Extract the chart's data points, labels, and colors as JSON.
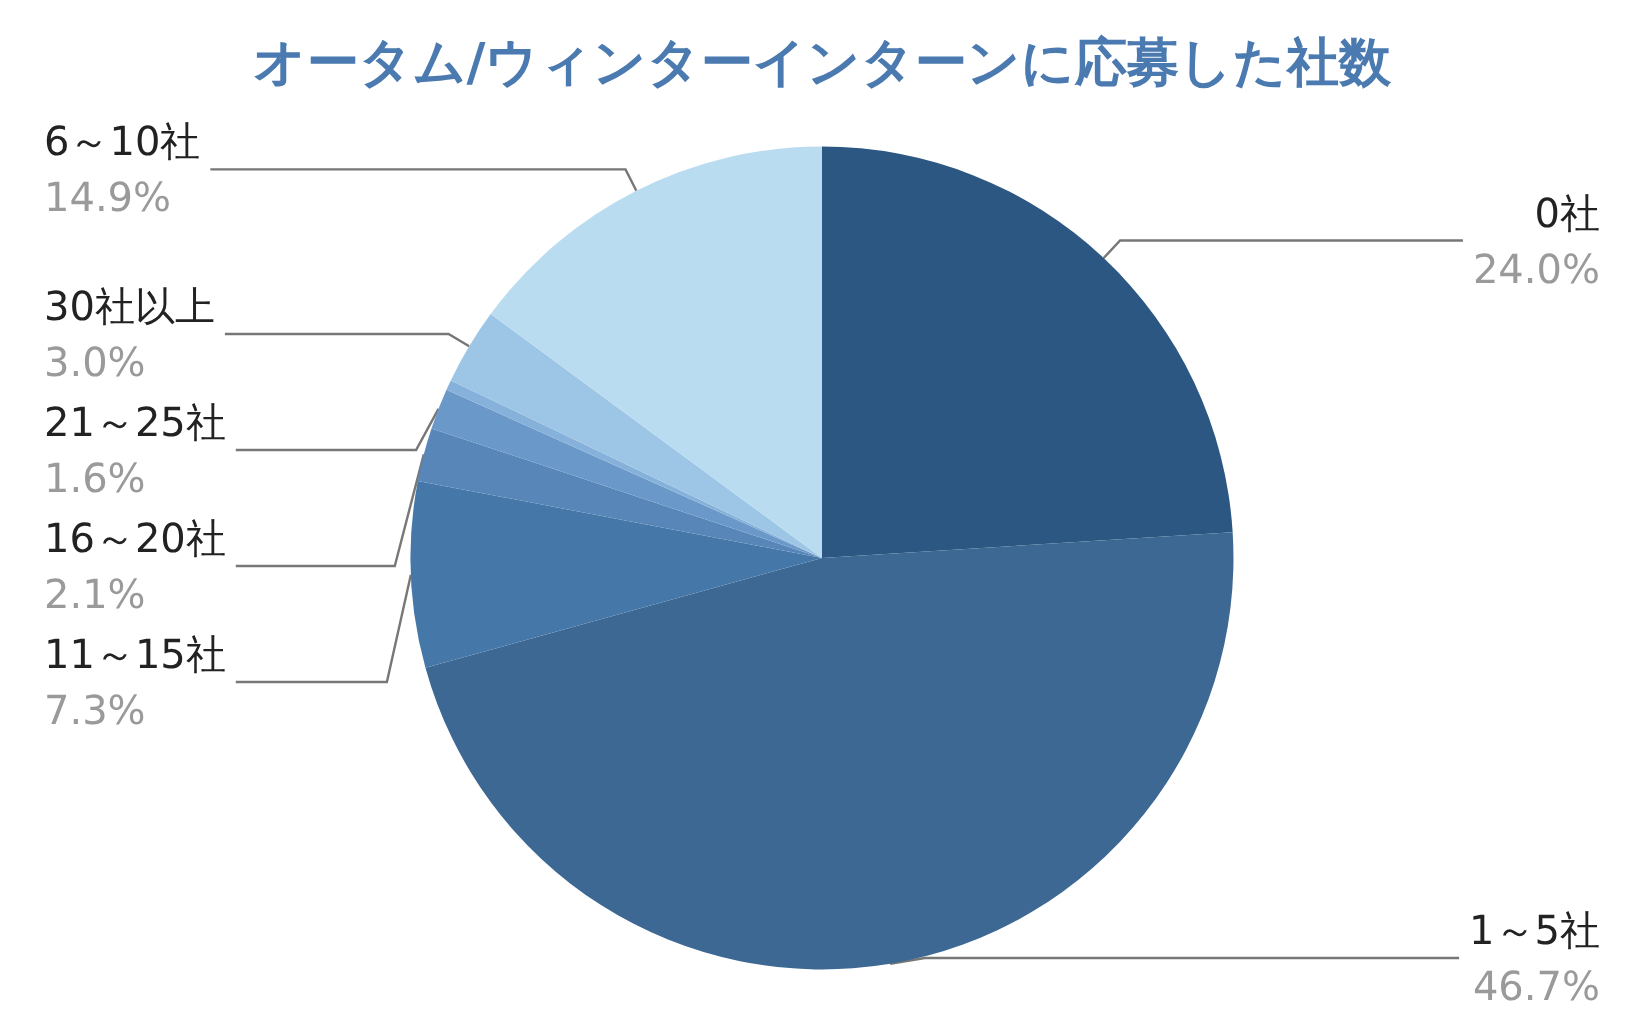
{
  "chart_data": {
    "type": "pie",
    "title": "オータム/ウィンターインターンに応募した社数",
    "categories": [
      "0社",
      "1～5社",
      "11～15社",
      "16～20社",
      "21～25社",
      null,
      "30社以上",
      "6～10社"
    ],
    "values": [
      24.0,
      46.7,
      7.3,
      2.1,
      1.6,
      0.4,
      3.0,
      14.9
    ],
    "value_labels": [
      "24.0%",
      "46.7%",
      "7.3%",
      "2.1%",
      "1.6%",
      null,
      "3.0%",
      "14.9%"
    ],
    "colors": [
      "#2b5782",
      "#3c6893",
      "#4577a8",
      "#5886b8",
      "#6a98c8",
      "#86b1da",
      "#9dc6e6",
      "#badcf1"
    ],
    "legend": false
  }
}
